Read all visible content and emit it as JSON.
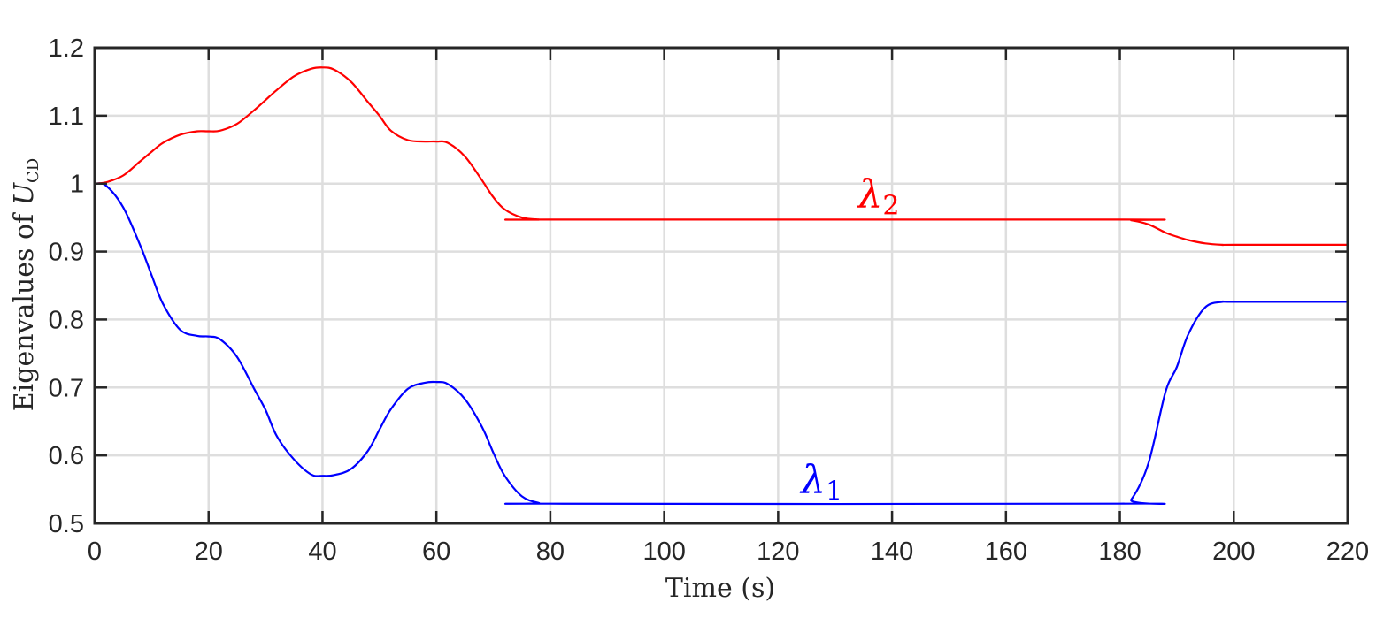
{
  "chart_data": {
    "type": "line",
    "xlabel": "Time (s)",
    "ylabel": {
      "text": "Eigenvalues of ",
      "symbol": "U",
      "subscript": "CD"
    },
    "xlim": [
      0,
      220
    ],
    "ylim": [
      0.5,
      1.2
    ],
    "xticks": [
      0,
      20,
      40,
      60,
      80,
      100,
      120,
      140,
      160,
      180,
      200,
      220
    ],
    "yticks": [
      0.5,
      0.6,
      0.7,
      0.8,
      0.9,
      1,
      1.1,
      1.2
    ],
    "xtick_labels": [
      "0",
      "20",
      "40",
      "60",
      "80",
      "100",
      "120",
      "140",
      "160",
      "180",
      "200",
      "220"
    ],
    "ytick_labels": [
      "0.5",
      "0.6",
      "0.7",
      "0.8",
      "0.9",
      "1",
      "1.1",
      "1.2"
    ],
    "grid": true,
    "series": [
      {
        "name": "λ1",
        "label_symbol": "λ",
        "label_subscript": "1",
        "color": "#0000ff",
        "label_at": [
          124,
          0.545
        ],
        "x": [
          0,
          2,
          5,
          8,
          10,
          12,
          15,
          18,
          20,
          22,
          25,
          28,
          30,
          32,
          35,
          38,
          40,
          42,
          45,
          48,
          50,
          52,
          55,
          58,
          60,
          62,
          65,
          68,
          70,
          72,
          75,
          78,
          80,
          180,
          182,
          185,
          188,
          190,
          192,
          195,
          198,
          200,
          220
        ],
        "y": [
          1.0,
          0.997,
          0.965,
          0.909,
          0.865,
          0.823,
          0.785,
          0.776,
          0.775,
          0.771,
          0.745,
          0.698,
          0.667,
          0.628,
          0.594,
          0.572,
          0.57,
          0.571,
          0.58,
          0.607,
          0.638,
          0.668,
          0.698,
          0.707,
          0.708,
          0.705,
          0.683,
          0.642,
          0.604,
          0.57,
          0.54,
          0.53,
          0.529,
          0.529,
          0.535,
          0.588,
          0.693,
          0.73,
          0.778,
          0.818,
          0.826,
          0.826,
          0.826
        ]
      },
      {
        "name": "λ2",
        "label_symbol": "λ",
        "label_subscript": "2",
        "color": "#ff0000",
        "label_at": [
          134,
          0.965
        ],
        "x": [
          0,
          2,
          5,
          8,
          10,
          12,
          15,
          18,
          20,
          22,
          25,
          28,
          30,
          32,
          35,
          38,
          40,
          42,
          45,
          48,
          50,
          52,
          55,
          58,
          60,
          62,
          65,
          68,
          70,
          72,
          75,
          78,
          80,
          180,
          182,
          185,
          188,
          190,
          192,
          195,
          198,
          200,
          220
        ],
        "y": [
          1.0,
          1.002,
          1.012,
          1.033,
          1.047,
          1.06,
          1.072,
          1.077,
          1.077,
          1.078,
          1.088,
          1.108,
          1.123,
          1.138,
          1.158,
          1.169,
          1.171,
          1.168,
          1.15,
          1.12,
          1.1,
          1.078,
          1.064,
          1.062,
          1.062,
          1.06,
          1.04,
          1.005,
          0.98,
          0.962,
          0.95,
          0.947,
          0.947,
          0.947,
          0.946,
          0.94,
          0.928,
          0.922,
          0.917,
          0.912,
          0.91,
          0.91,
          0.91
        ]
      }
    ]
  }
}
